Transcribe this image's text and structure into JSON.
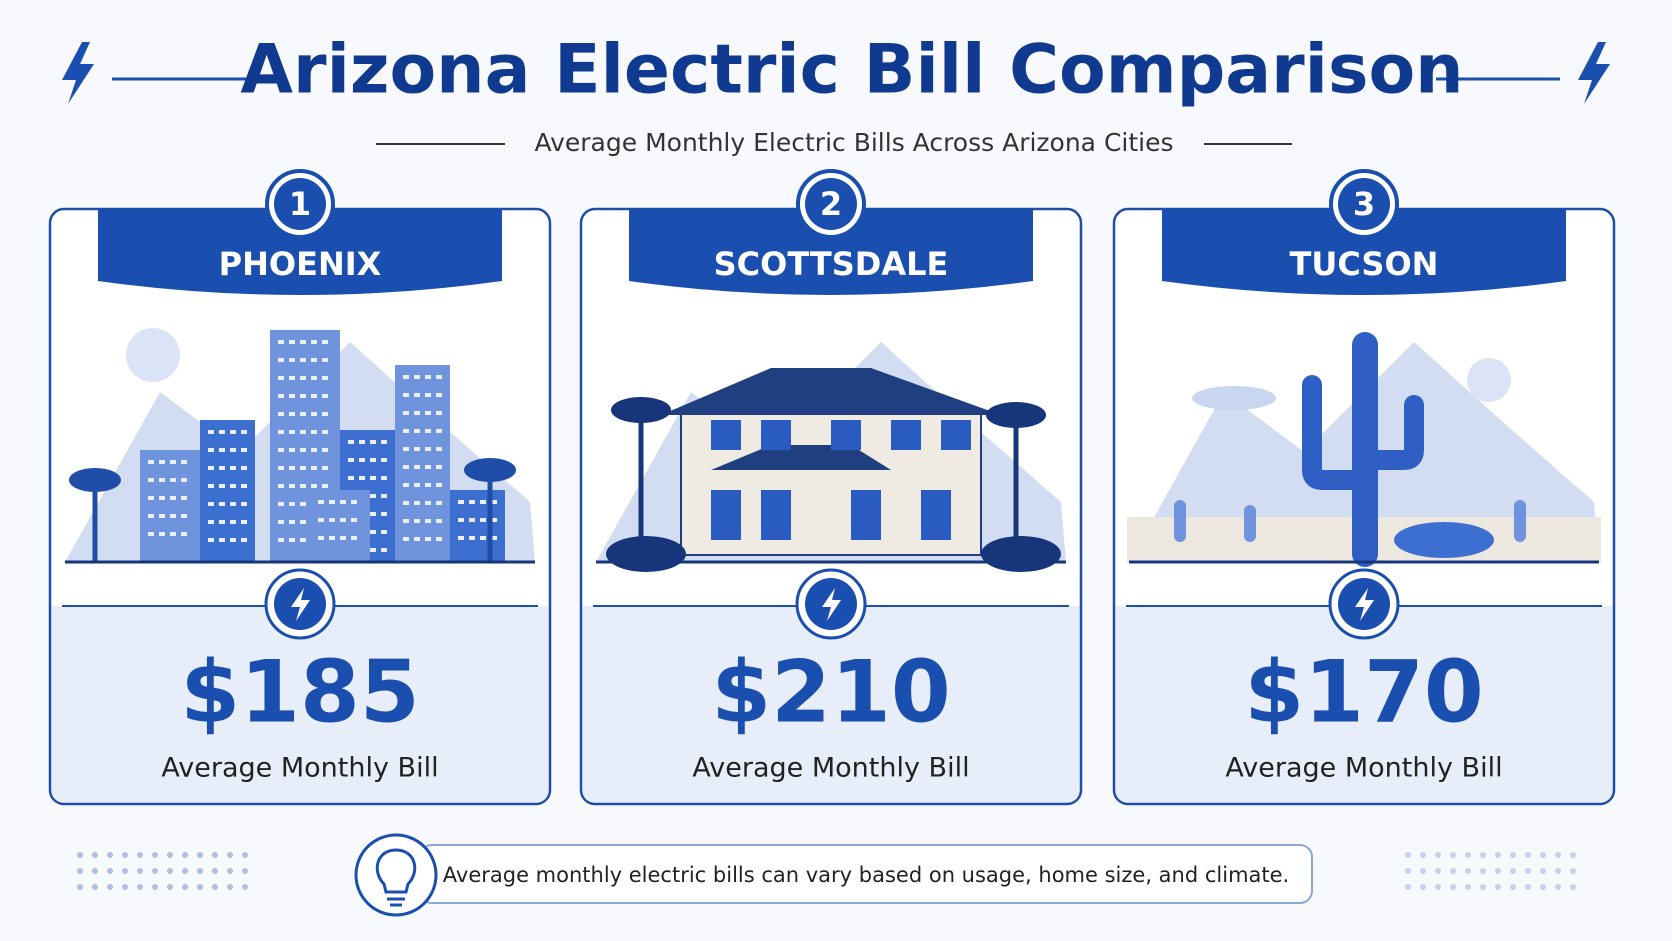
{
  "header": {
    "title": "Arizona Electric Bill Comparison",
    "subtitle": "Average Monthly Electric Bills Across Arizona Cities"
  },
  "cards": [
    {
      "rank": "1",
      "city": "PHOENIX",
      "amount": "$185",
      "caption": "Average Monthly Bill"
    },
    {
      "rank": "2",
      "city": "SCOTTSDALE",
      "amount": "$210",
      "caption": "Average Monthly Bill"
    },
    {
      "rank": "3",
      "city": "TUCSON",
      "amount": "$170",
      "caption": "Average Monthly Bill"
    }
  ],
  "footer": {
    "note": "Average monthly electric bills can vary based on usage, home size, and climate."
  }
}
